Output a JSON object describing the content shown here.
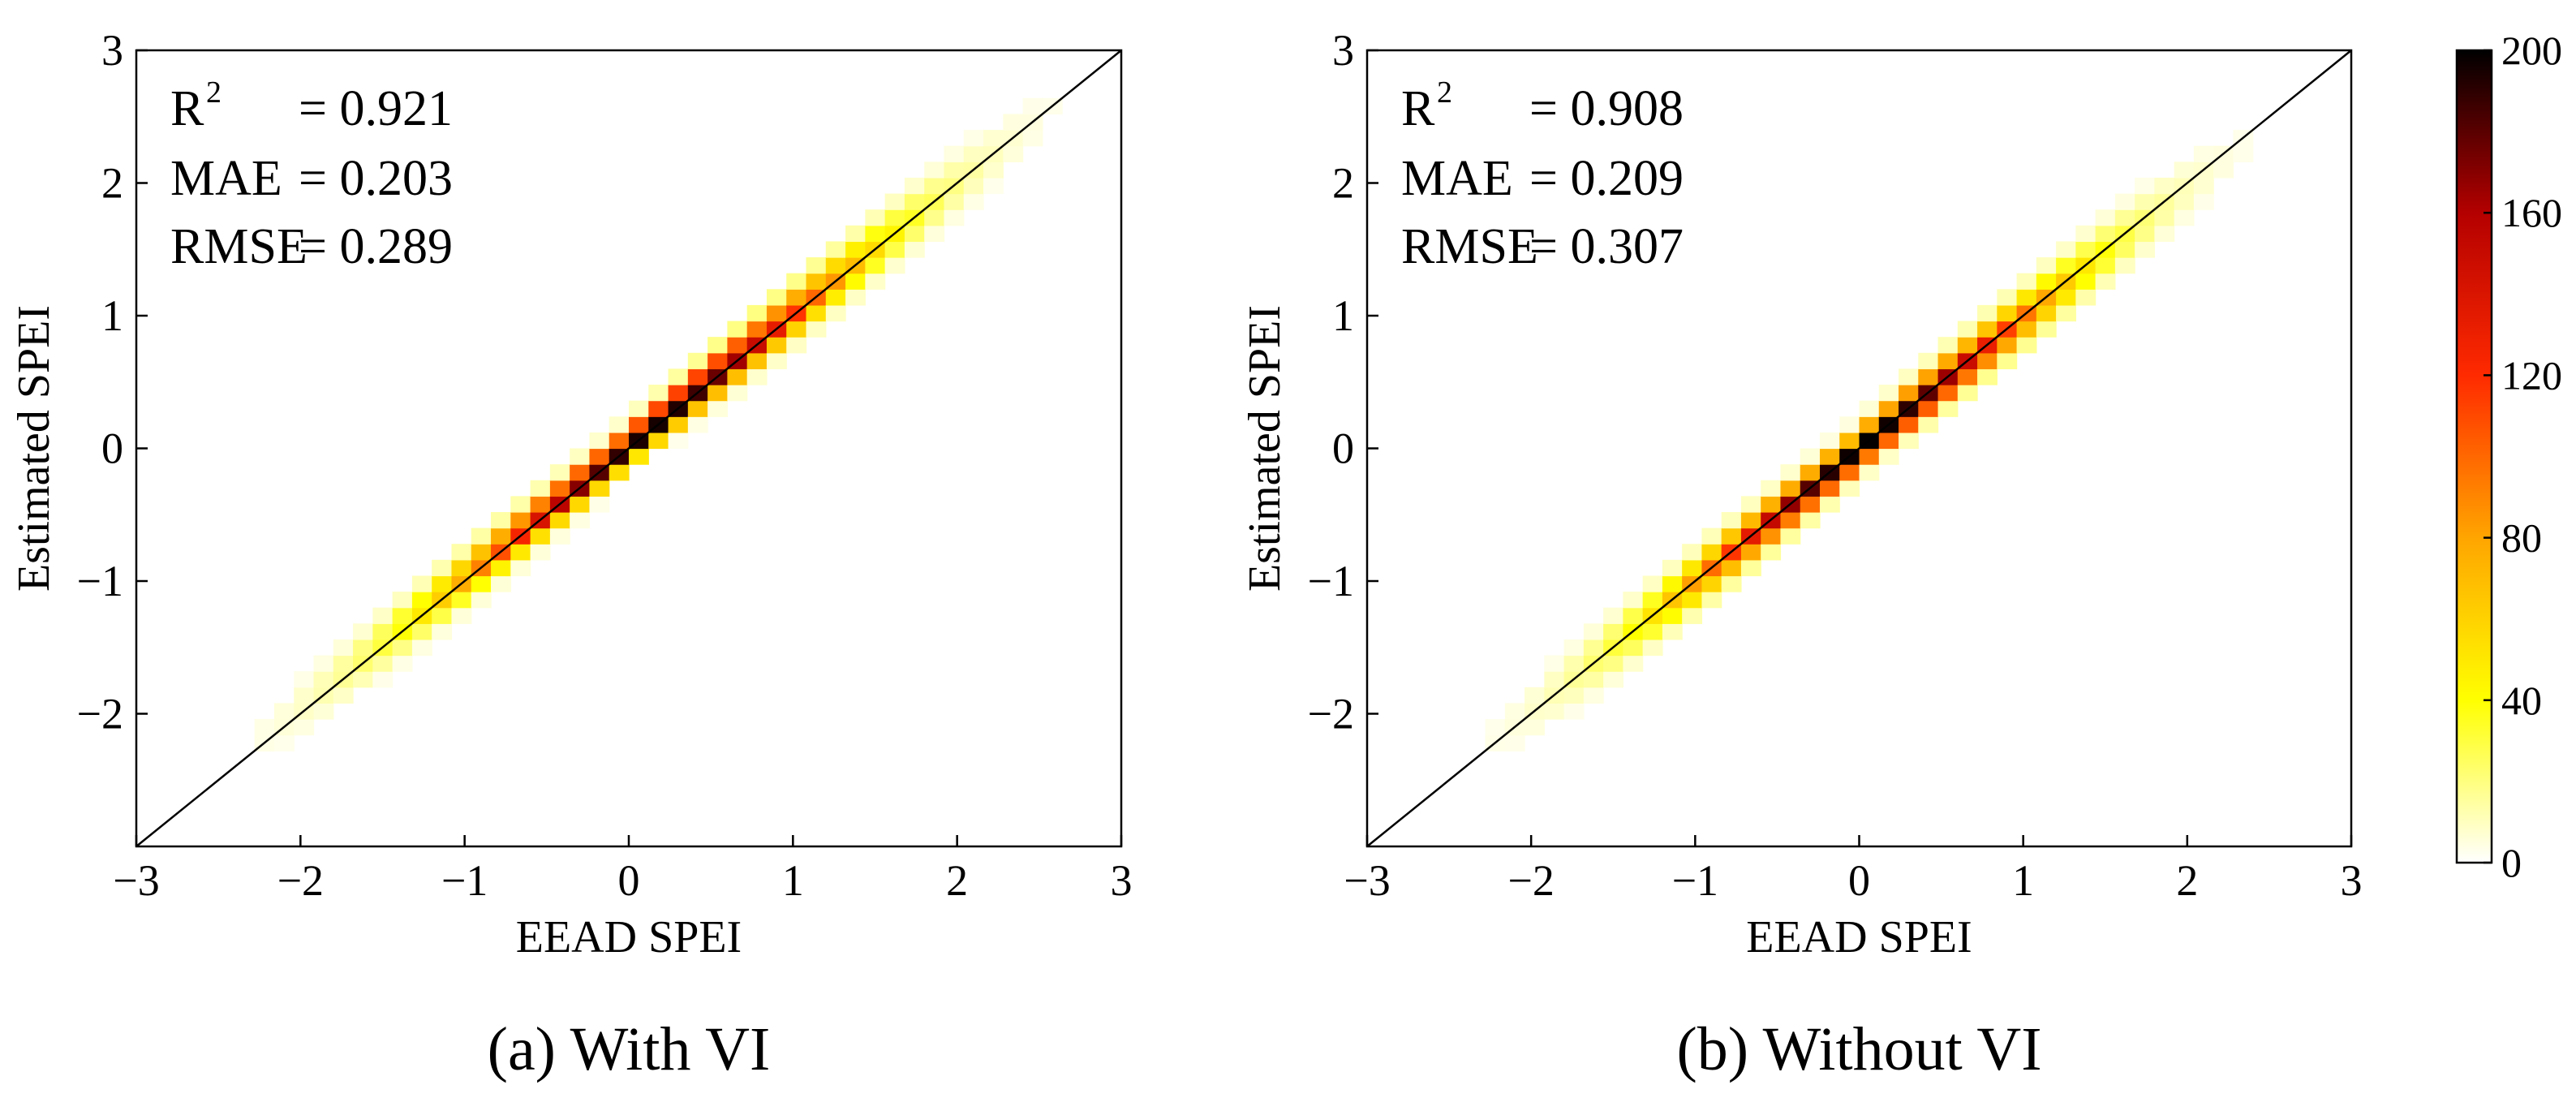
{
  "chart_data": {
    "type": "heatmap",
    "panels": [
      {
        "caption": "(a) With VI",
        "xlabel": "EEAD SPEI",
        "ylabel": "Estimated SPEI",
        "xlim": [
          -3,
          3
        ],
        "ylim": [
          -3,
          3
        ],
        "xticks": [
          -3,
          -2,
          -1,
          0,
          1,
          2,
          3
        ],
        "yticks": [
          -2,
          -1,
          0,
          1,
          2,
          3
        ],
        "xtick_labels": [
          "−3",
          "−2",
          "−1",
          "0",
          "1",
          "2",
          "3"
        ],
        "ytick_labels": [
          "−2",
          "−1",
          "0",
          "1",
          "2",
          "3"
        ],
        "reference_line": "1:1",
        "stats": [
          {
            "label": "R",
            "sup": "2",
            "value": "= 0.921"
          },
          {
            "label": "MAE",
            "value": "= 0.203"
          },
          {
            "label": "RMSE",
            "value": "= 0.289"
          }
        ],
        "bin_width": 0.12,
        "density_model": {
          "peak_x": 0.15,
          "peak_count": 200,
          "along_spread": 0.85,
          "cross_spread": 0.085,
          "bias": 0.02
        }
      },
      {
        "caption": "(b) Without VI",
        "xlabel": "EEAD SPEI",
        "ylabel": "Estimated SPEI",
        "xlim": [
          -3,
          3
        ],
        "ylim": [
          -3,
          3
        ],
        "xticks": [
          -3,
          -2,
          -1,
          0,
          1,
          2,
          3
        ],
        "yticks": [
          -2,
          -1,
          0,
          1,
          2,
          3
        ],
        "xtick_labels": [
          "−3",
          "−2",
          "−1",
          "0",
          "1",
          "2",
          "3"
        ],
        "ytick_labels": [
          "−2",
          "−1",
          "0",
          "1",
          "2",
          "3"
        ],
        "reference_line": "1:1",
        "stats": [
          {
            "label": "R",
            "sup": "2",
            "value": "= 0.908"
          },
          {
            "label": "MAE",
            "value": "= 0.209"
          },
          {
            "label": "RMSE",
            "value": "= 0.307"
          }
        ],
        "bin_width": 0.12,
        "density_model": {
          "peak_x": 0.05,
          "peak_count": 200,
          "along_spread": 0.8,
          "cross_spread": 0.09,
          "bias": -0.01
        }
      }
    ],
    "colorbar": {
      "min": 0,
      "max": 200,
      "ticks": [
        0,
        40,
        80,
        120,
        160,
        200
      ],
      "tick_labels": [
        "0",
        "40",
        "80",
        "120",
        "160",
        "200"
      ],
      "colormap": "hot_r",
      "colors": [
        "#ffffff",
        "#ffff00",
        "#ffa500",
        "#ff2a00",
        "#b40000",
        "#000000"
      ]
    }
  }
}
